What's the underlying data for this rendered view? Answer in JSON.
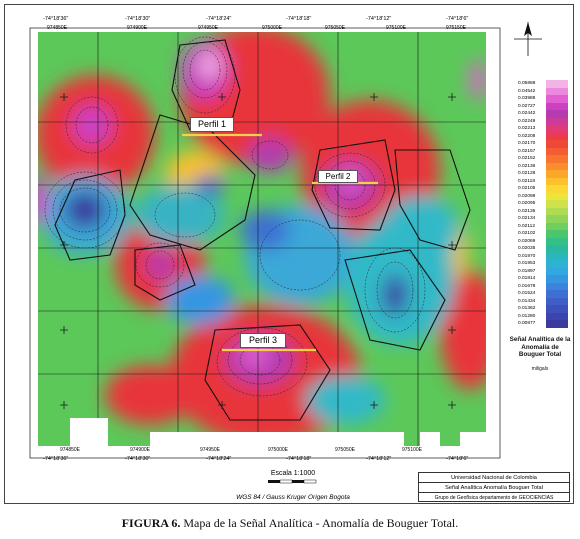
{
  "figure": {
    "caption_label": "FIGURA 6.",
    "caption_text": " Mapa de la Señal Analítica - Anomalía de Bouguer Total."
  },
  "profiles": [
    {
      "label": "Perfil 1"
    },
    {
      "label": "Perfil 2"
    },
    {
      "label": "Perfil 3"
    }
  ],
  "coordinates": {
    "top_longitudes": [
      "-74°18'36\"",
      "-74°18'30\"",
      "-74°18'24\"",
      "-74°18'18\"",
      "-74°18'12\"",
      "-74°18'6\""
    ],
    "bottom_longitudes": [
      "-74°18'36\"",
      "-74°18'30\"",
      "-74°18'24\"",
      "-74°18'18\"",
      "-74°18'12\"",
      "-74°18'6\""
    ],
    "top_eastings": [
      "974850E",
      "974900E",
      "974950E",
      "975000E",
      "975050E",
      "975100E",
      "975150E"
    ],
    "bottom_eastings": [
      "974850E",
      "974900E",
      "974950E",
      "975000E",
      "975050E",
      "975100E"
    ]
  },
  "legend": {
    "values": [
      "0.05888",
      "0.04542",
      "0.03988",
      "0.02727",
      "0.02442",
      "0.02249",
      "0.02213",
      "0.02208",
      "0.02170",
      "0.02157",
      "0.02152",
      "0.02136",
      "0.02128",
      "0.02118",
      "0.02105",
      "0.02098",
      "0.02095",
      "0.02135",
      "0.02134",
      "0.02112",
      "0.02102",
      "0.02069",
      "0.02035",
      "0.01970",
      "0.01953",
      "0.01897",
      "0.01814",
      "0.01678",
      "0.01524",
      "0.01434",
      "0.01362",
      "0.01280",
      "0.00877"
    ],
    "colors": [
      "#f2b4e6",
      "#ec88dd",
      "#e060d2",
      "#cc40c2",
      "#b43bb0",
      "#cc3a9a",
      "#e23a72",
      "#ee3b4a",
      "#f04838",
      "#f45c32",
      "#f87530",
      "#fa8d2e",
      "#fca62c",
      "#fdc12c",
      "#fcd834",
      "#eae53b",
      "#cfe24a",
      "#afdc52",
      "#8fd55a",
      "#6fce5e",
      "#4dc66b",
      "#34bf86",
      "#2ab8a1",
      "#2ab6bc",
      "#2cb3d2",
      "#31a8df",
      "#3696e2",
      "#3b83dc",
      "#3d70d2",
      "#3e5fc7",
      "#3e50ba",
      "#3c44ad",
      "#3a3a9f"
    ],
    "title": "Señal Analítica de la Anomalía de Bouguer Total",
    "unit": "miligals"
  },
  "scale": {
    "label": "Escala 1:1000",
    "datum": "WGS 84 / Gauss Kruger Origen Bogota"
  },
  "title_block": {
    "institution": "Universidad Nacional de Colombia",
    "map_title": "Señal Analítica Anomalía Bouguer Total",
    "group": "Grupo de Geofísica departamento de GEOCIENCIAS"
  }
}
